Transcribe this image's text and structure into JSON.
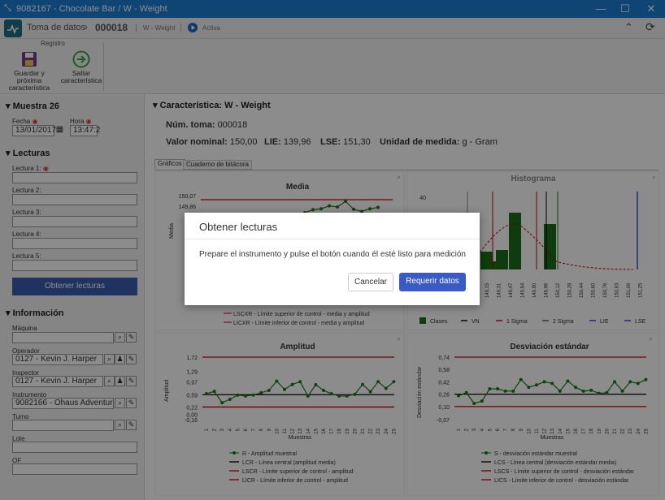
{
  "window": {
    "title": "9082167 - Chocolate Bar / W - Weight"
  },
  "header": {
    "breadcrumb_root": "Toma de datos",
    "record_id": "000018",
    "subtitle": "W - Weight",
    "status": "Activa"
  },
  "ribbon": {
    "group_label": "Registro",
    "buttons": [
      {
        "label": "Guardar y próxima característica"
      },
      {
        "label": "Saltar característica"
      }
    ]
  },
  "left": {
    "sample_title": "Muestra 26",
    "date_label": "Fecha",
    "date_value": "13/01/2017",
    "time_label": "Hora",
    "time_value": "13:47:2",
    "readings_title": "Lecturas",
    "readings": [
      "Lectura 1:",
      "Lectura 2:",
      "Lectura 3:",
      "Lectura 4:",
      "Lectura 5:"
    ],
    "get_readings_button": "Obtener lecturas",
    "info_title": "Información",
    "fields": [
      {
        "label": "Máquina",
        "value": ""
      },
      {
        "label": "Operador",
        "value": "0127 - Kevin J. Harper"
      },
      {
        "label": "Inspector",
        "value": "0127 - Kevin J. Harper"
      },
      {
        "label": "Instrumento",
        "value": "9082166 - Ohaus Adventurer"
      },
      {
        "label": "Turno",
        "value": ""
      },
      {
        "label": "Lote",
        "value": ""
      },
      {
        "label": "OF",
        "value": ""
      }
    ]
  },
  "main": {
    "char_title": "Característica: W - Weight",
    "toma_label": "Núm. toma:",
    "toma_value": "000018",
    "nominal_label": "Valor nominal:",
    "nominal_value": "150,00",
    "lie_label": "LIE:",
    "lie_value": "139,96",
    "lse_label": "LSE:",
    "lse_value": "151,30",
    "unit_label": "Unidad de medida:",
    "unit_value": "g - Gram",
    "tabs": [
      "Gráficos",
      "Cuaderno de bitácora"
    ]
  },
  "colors": {
    "accent": "#1d7fd6",
    "red": "#cc0000",
    "green": "#1a7a1a",
    "dialog_primary": "#3a5bc7",
    "left_button": "#3b5bb0"
  },
  "chart_data": [
    {
      "type": "line",
      "title": "Media",
      "ylabel": "Media",
      "yticks": [
        "150,07",
        "149,86",
        "14",
        "14",
        "14",
        "14"
      ],
      "legend": [
        "LSCXR - Límite superior de control - media y amplitud",
        "LICXR - Límite inferior de control - media y amplitud"
      ],
      "series": [
        {
          "values": [
            149.55,
            149.68,
            149.72,
            149.85,
            149.8,
            150.05,
            149.7,
            149.6,
            149.72,
            149.78
          ]
        }
      ]
    },
    {
      "type": "bar",
      "title": "Histograma",
      "yticks": [
        "40",
        "20"
      ],
      "categories": [
        "149,15",
        "149,31",
        "149,47",
        "149,64",
        "149,80",
        "149,96",
        "150,12",
        "150,28",
        "150,44",
        "150,60",
        "150,76",
        "150,93",
        "151,09",
        "151,25"
      ],
      "legend": [
        "Clases",
        "VN",
        "1 Sigma",
        "2 Sigma",
        "LIE",
        "LSE"
      ]
    },
    {
      "type": "line",
      "title": "Amplitud",
      "ylabel": "Amplitud",
      "xlabel": "Muestras",
      "yticks": [
        "1,72",
        "1,29",
        "0,97",
        "0,59",
        "0,22",
        "0,00",
        "-0,16"
      ],
      "categories": [
        "1",
        "2",
        "3",
        "4",
        "5",
        "6",
        "7",
        "8",
        "9",
        "10",
        "11",
        "12",
        "13",
        "14",
        "15",
        "16",
        "17",
        "18",
        "19",
        "20",
        "21",
        "22",
        "23",
        "24",
        "25"
      ],
      "series": [
        {
          "name": "R - Amplitud muestral",
          "values": [
            0.62,
            0.69,
            0.35,
            0.45,
            0.58,
            0.55,
            0.58,
            0.65,
            0.72,
            1.0,
            0.75,
            0.9,
            0.98,
            0.55,
            0.89,
            0.72,
            0.62,
            0.55,
            0.55,
            0.6,
            0.9,
            0.68,
            0.98,
            0.78,
            0.98
          ]
        }
      ],
      "legend": [
        "R - Amplitud muestral",
        "LCR - Línea central (amplitud media)",
        "LSCR - Límite superior de control - amplitud",
        "LICR - Límite inferior de control - amplitud"
      ]
    },
    {
      "type": "line",
      "title": "Desviación estándar",
      "ylabel": "Desviación estándar",
      "xlabel": "Muestras",
      "yticks": [
        "0,74",
        "0,58",
        "0,42",
        "0,26",
        "0,10",
        "-0,07"
      ],
      "categories": [
        "1",
        "2",
        "3",
        "4",
        "5",
        "6",
        "7",
        "8",
        "9",
        "10",
        "11",
        "12",
        "13",
        "14",
        "15",
        "16",
        "17",
        "18",
        "19",
        "20",
        "21",
        "22",
        "23",
        "24",
        "25"
      ],
      "series": [
        {
          "name": "S - desviación estándar muestral",
          "values": [
            0.24,
            0.28,
            0.14,
            0.17,
            0.33,
            0.33,
            0.3,
            0.3,
            0.45,
            0.35,
            0.38,
            0.42,
            0.4,
            0.3,
            0.43,
            0.35,
            0.3,
            0.31,
            0.27,
            0.28,
            0.42,
            0.3,
            0.42,
            0.4,
            0.45
          ]
        }
      ],
      "legend": [
        "S - desviación estándar muestral",
        "LCS - Línea central (desviación estándar media)",
        "LSCS - Límite superior de control - desviación estándar",
        "LICS - Límite inferior de control - desviación estándar"
      ]
    }
  ],
  "dialog": {
    "title": "Obtener lecturas",
    "message": "Prepare el instrumento y pulse el botón cuando él esté listo para medición",
    "cancel": "Cancelar",
    "confirm": "Requerir datos"
  }
}
